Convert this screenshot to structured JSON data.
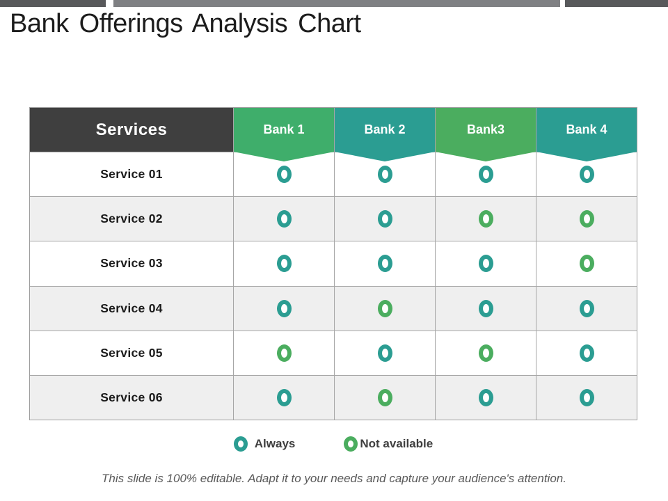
{
  "slide": {
    "title": "Bank Offerings Analysis Chart",
    "footer": "This slide is 100% editable. Adapt it to your needs and capture your audience's attention."
  },
  "top_bar": {
    "left_color": "#58595B",
    "middle_color": "#7F8083",
    "right_color": "#58595B"
  },
  "table": {
    "services_header": "Services",
    "bank_headers": [
      {
        "label": "Bank 1",
        "tone": "green-a",
        "color": "#3FAE6B"
      },
      {
        "label": "Bank 2",
        "tone": "teal",
        "color": "#2B9D92"
      },
      {
        "label": "Bank3",
        "tone": "green-b",
        "color": "#4BAD5F"
      },
      {
        "label": "Bank 4",
        "tone": "teal",
        "color": "#2B9D92"
      }
    ],
    "rows": [
      {
        "service": "Service 01",
        "marks": [
          "always",
          "always",
          "always",
          "always"
        ]
      },
      {
        "service": "Service 02",
        "marks": [
          "always",
          "always",
          "not_available",
          "not_available"
        ]
      },
      {
        "service": "Service 03",
        "marks": [
          "always",
          "always",
          "always",
          "not_available"
        ]
      },
      {
        "service": "Service 04",
        "marks": [
          "always",
          "not_available",
          "always",
          "always"
        ]
      },
      {
        "service": "Service 05",
        "marks": [
          "not_available",
          "always",
          "not_available",
          "always"
        ]
      },
      {
        "service": "Service 06",
        "marks": [
          "always",
          "not_available",
          "always",
          "always"
        ]
      }
    ]
  },
  "legend": {
    "items": [
      {
        "label": "Always",
        "mark": "always",
        "color": "#2B9D92"
      },
      {
        "label": "Not available",
        "mark": "not_available",
        "color": "#4BAD5F"
      }
    ]
  },
  "colors": {
    "always_ring": "#2B9D92",
    "not_available_ring": "#4BAD5F",
    "services_header_bg": "#3F3F3F",
    "alt_row_bg": "#EFEFEF",
    "grid_border": "#A6A6A6"
  },
  "chart_data": {
    "type": "table",
    "title": "Bank Offerings Analysis Chart",
    "columns": [
      "Services",
      "Bank 1",
      "Bank 2",
      "Bank3",
      "Bank 4"
    ],
    "rows": [
      [
        "Service 01",
        "always",
        "always",
        "always",
        "always"
      ],
      [
        "Service 02",
        "always",
        "always",
        "not_available",
        "not_available"
      ],
      [
        "Service 03",
        "always",
        "always",
        "always",
        "not_available"
      ],
      [
        "Service 04",
        "always",
        "not_available",
        "always",
        "always"
      ],
      [
        "Service 05",
        "not_available",
        "always",
        "not_available",
        "always"
      ],
      [
        "Service 06",
        "always",
        "not_available",
        "always",
        "always"
      ]
    ],
    "legend": {
      "always": "Always",
      "not_available": "Not available"
    },
    "layout_hints": {
      "legend_position": "bottom-center",
      "zebra_rows": true
    }
  }
}
